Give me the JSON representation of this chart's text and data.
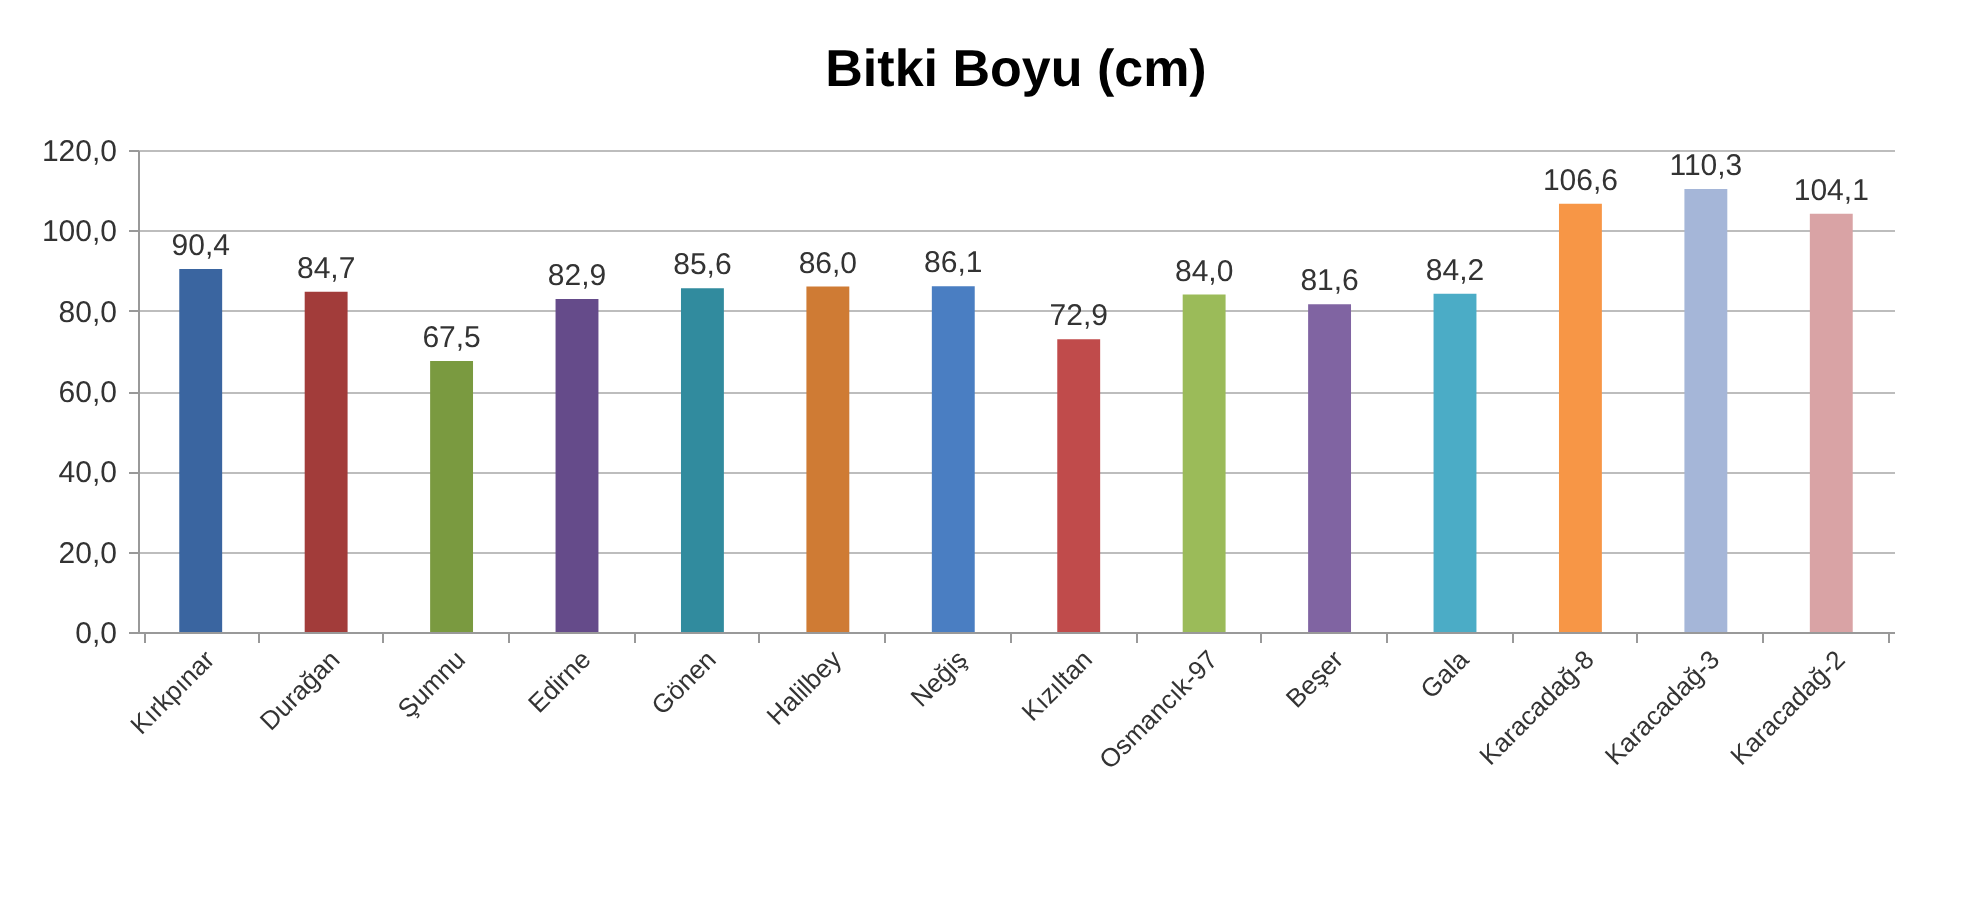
{
  "chart_data": {
    "type": "bar",
    "title": "Bitki Boyu (cm)",
    "categories": [
      "Kırkpınar",
      "Durağan",
      "Şumnu",
      "Edirne",
      "Gönen",
      "Halilbey",
      "Neğiş",
      "Kızıltan",
      "Osmancık-97",
      "Beşer",
      "Gala",
      "Karacadağ-8",
      "Karacadağ-3",
      "Karacadağ-2"
    ],
    "values": [
      90.4,
      84.7,
      67.5,
      82.9,
      85.6,
      86.0,
      86.1,
      72.9,
      84.0,
      81.6,
      84.2,
      106.6,
      110.3,
      104.1
    ],
    "value_labels": [
      "90,4",
      "84,7",
      "67,5",
      "82,9",
      "85,6",
      "86,0",
      "86,1",
      "72,9",
      "84,0",
      "81,6",
      "84,2",
      "106,6",
      "110,3",
      "104,1"
    ],
    "colors": [
      "#3a65a0",
      "#a23c3a",
      "#7a9a40",
      "#654b8a",
      "#318b9e",
      "#cf7b34",
      "#4a7ec2",
      "#c04b4b",
      "#9bbb59",
      "#8064a2",
      "#4bacc6",
      "#f79646",
      "#a5b6d8",
      "#d9a3a5"
    ],
    "ylim": [
      0,
      120
    ],
    "yticks": [
      {
        "value": 0,
        "label": "0,0"
      },
      {
        "value": 20,
        "label": "20,0"
      },
      {
        "value": 40,
        "label": "40,0"
      },
      {
        "value": 60,
        "label": "60,0"
      },
      {
        "value": 80,
        "label": "80,0"
      },
      {
        "value": 100,
        "label": "100,0"
      },
      {
        "value": 120,
        "label": "120,0"
      }
    ],
    "grid": "y",
    "legend": false
  }
}
